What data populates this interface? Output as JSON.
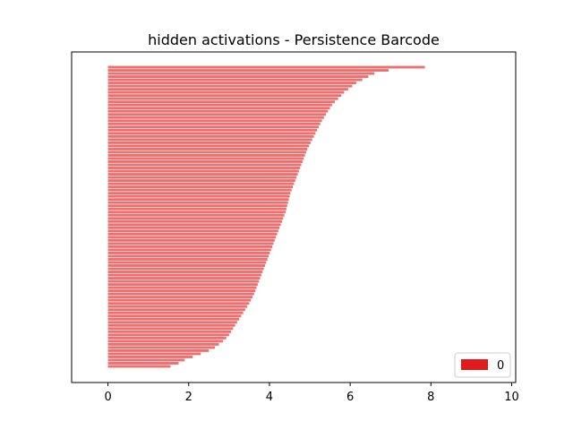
{
  "chart_data": {
    "type": "bar",
    "orientation": "horizontal",
    "title": "hidden activations - Persistence Barcode",
    "xlabel": "",
    "ylabel": "",
    "xlim": [
      -0.9,
      10.1
    ],
    "xticks": [
      "0",
      "2",
      "4",
      "6",
      "8",
      "10"
    ],
    "yticks_visible": false,
    "grid": false,
    "bar_color": "#ee6f6f",
    "bar_start": 0,
    "legend": {
      "placement": "lower-right",
      "entries": [
        {
          "label": "0",
          "color": "#e31a1c"
        }
      ]
    },
    "series": [
      {
        "name": "0",
        "bars_birth": 0,
        "deaths_top_to_bottom": [
          7.85,
          6.95,
          6.6,
          6.45,
          6.3,
          6.15,
          6.05,
          5.95,
          5.85,
          5.78,
          5.7,
          5.62,
          5.55,
          5.5,
          5.45,
          5.4,
          5.35,
          5.3,
          5.26,
          5.22,
          5.18,
          5.14,
          5.1,
          5.06,
          5.02,
          4.98,
          4.94,
          4.91,
          4.88,
          4.85,
          4.82,
          4.79,
          4.76,
          4.73,
          4.7,
          4.67,
          4.64,
          4.61,
          4.58,
          4.55,
          4.52,
          4.5,
          4.48,
          4.46,
          4.44,
          4.42,
          4.4,
          4.37,
          4.34,
          4.31,
          4.28,
          4.25,
          4.22,
          4.19,
          4.16,
          4.13,
          4.1,
          4.07,
          4.04,
          4.01,
          3.98,
          3.95,
          3.92,
          3.89,
          3.86,
          3.83,
          3.8,
          3.77,
          3.74,
          3.71,
          3.68,
          3.65,
          3.62,
          3.58,
          3.54,
          3.5,
          3.45,
          3.4,
          3.35,
          3.3,
          3.25,
          3.2,
          3.15,
          3.1,
          3.05,
          3.0,
          2.93,
          2.85,
          2.75,
          2.65,
          2.5,
          2.3,
          2.1,
          1.9,
          1.75,
          1.55
        ]
      }
    ]
  }
}
